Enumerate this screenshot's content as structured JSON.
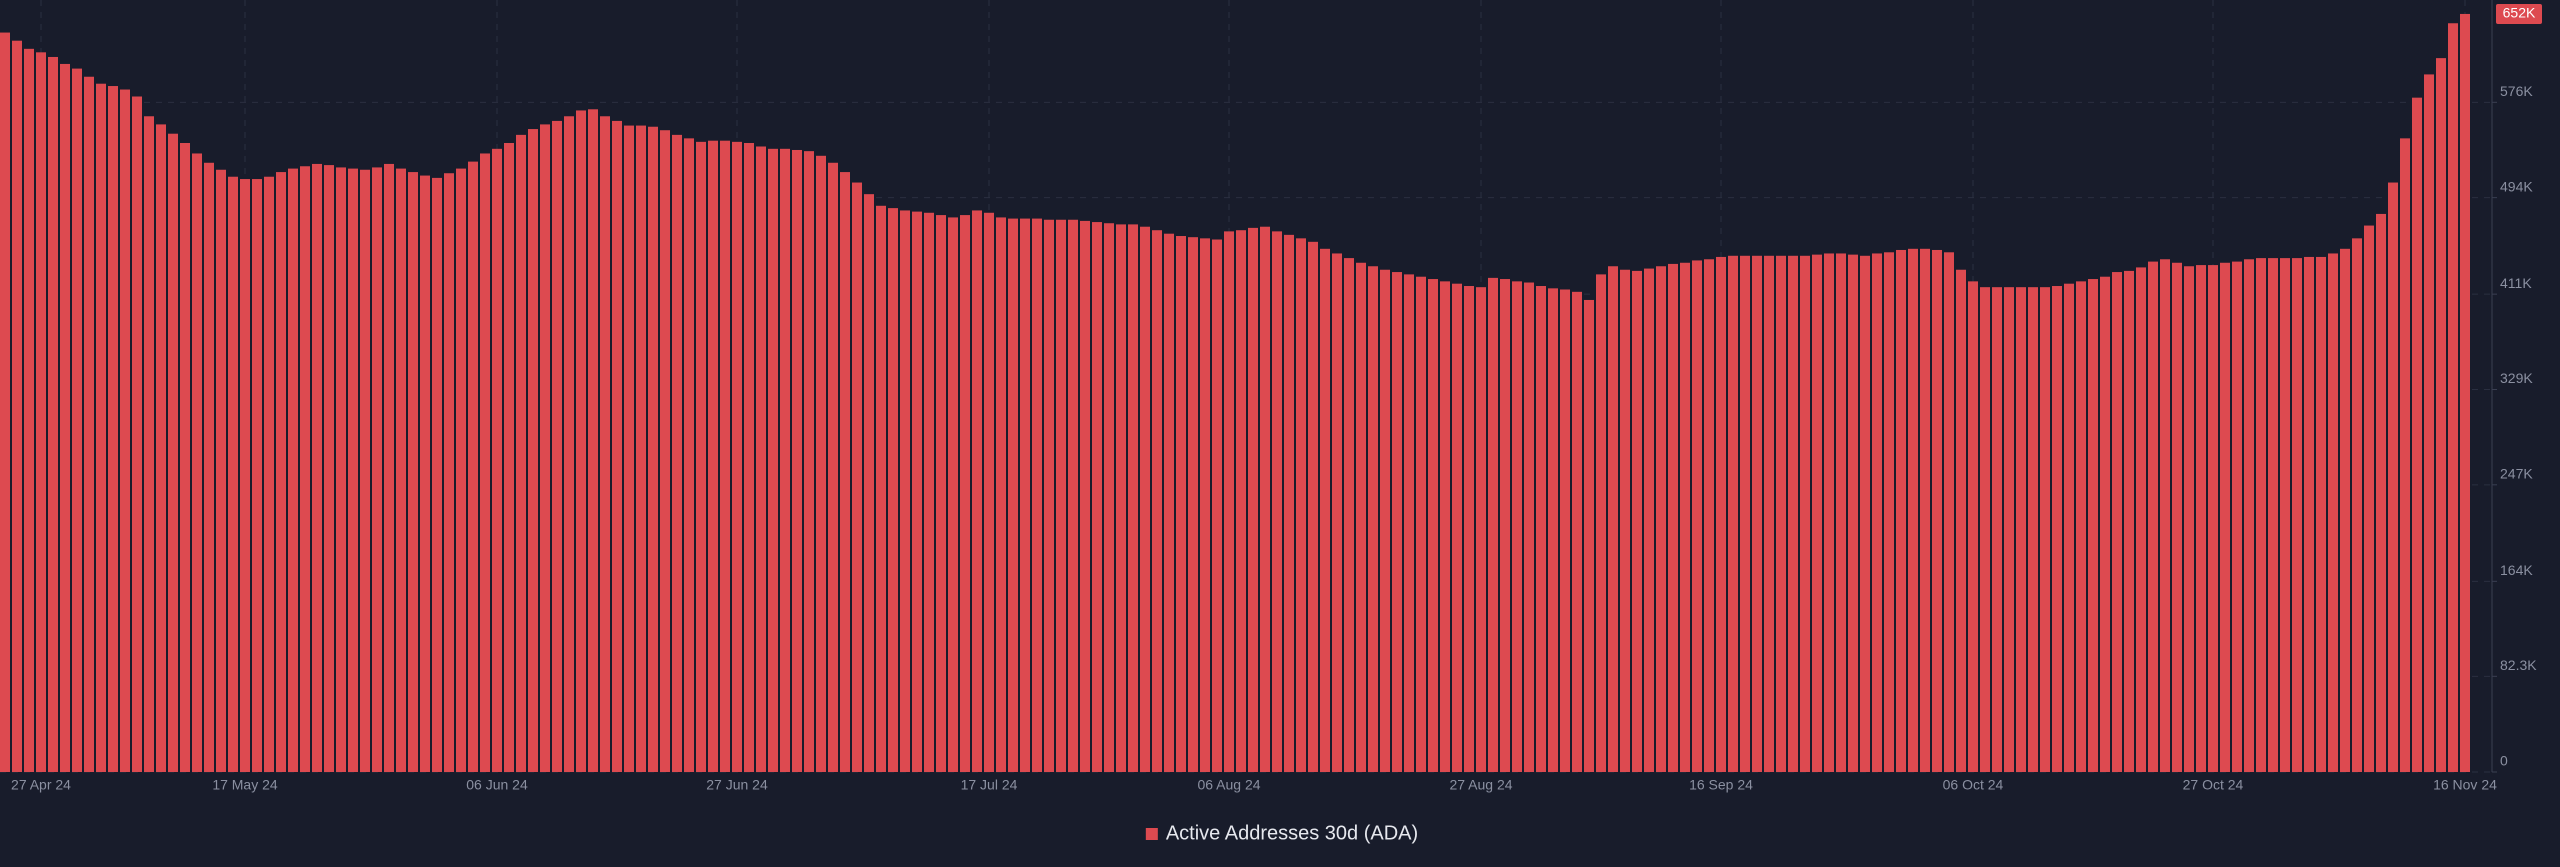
{
  "chart_data": {
    "type": "bar",
    "categories": [
      null,
      null,
      null,
      "27 Apr 24",
      null,
      null,
      null,
      null,
      null,
      null,
      null,
      null,
      null,
      null,
      null,
      null,
      null,
      null,
      null,
      null,
      "17 May 24",
      null,
      null,
      null,
      null,
      null,
      null,
      null,
      null,
      null,
      null,
      null,
      null,
      null,
      null,
      null,
      null,
      null,
      null,
      null,
      null,
      "06 Jun 24",
      null,
      null,
      null,
      null,
      null,
      null,
      null,
      null,
      null,
      null,
      null,
      null,
      null,
      null,
      null,
      null,
      null,
      null,
      null,
      "27 Jun 24",
      null,
      null,
      null,
      null,
      null,
      null,
      null,
      null,
      null,
      null,
      null,
      null,
      null,
      null,
      null,
      null,
      null,
      null,
      null,
      null,
      "17 Jul 24",
      null,
      null,
      null,
      null,
      null,
      null,
      null,
      null,
      null,
      null,
      null,
      null,
      null,
      null,
      null,
      null,
      null,
      null,
      null,
      "06 Aug 24",
      null,
      null,
      null,
      null,
      null,
      null,
      null,
      null,
      null,
      null,
      null,
      null,
      null,
      null,
      null,
      null,
      null,
      null,
      null,
      null,
      "27 Aug 24",
      null,
      null,
      null,
      null,
      null,
      null,
      null,
      null,
      null,
      null,
      null,
      null,
      null,
      null,
      null,
      null,
      null,
      null,
      null,
      "16 Sep 24",
      null,
      null,
      null,
      null,
      null,
      null,
      null,
      null,
      null,
      null,
      null,
      null,
      null,
      null,
      null,
      null,
      null,
      null,
      null,
      null,
      "06 Oct 24",
      null,
      null,
      null,
      null,
      null,
      null,
      null,
      null,
      null,
      null,
      null,
      null,
      null,
      null,
      null,
      null,
      null,
      null,
      null,
      "27 Oct 24",
      null,
      null,
      null,
      null,
      null,
      null,
      null,
      null,
      null,
      null,
      null,
      null,
      null,
      null,
      null,
      null,
      null,
      null,
      null,
      null,
      "16 Nov 24"
    ],
    "series": [
      {
        "name": "Active Addresses 30d (ADA)",
        "color": "#dd4a50",
        "values": [
          636000,
          629000,
          622000,
          619000,
          615000,
          609000,
          605000,
          598000,
          592000,
          590000,
          587000,
          581000,
          564000,
          557000,
          549000,
          541000,
          532000,
          524000,
          518000,
          512000,
          510000,
          510000,
          512000,
          516000,
          519000,
          521000,
          523000,
          522000,
          520000,
          519000,
          518000,
          520000,
          523000,
          519000,
          516000,
          513000,
          511000,
          515000,
          519000,
          525000,
          532000,
          536000,
          541000,
          548000,
          553000,
          557000,
          560000,
          564000,
          569000,
          570000,
          564000,
          560000,
          556000,
          556000,
          555000,
          552000,
          548000,
          545000,
          542000,
          543000,
          543000,
          542000,
          541000,
          538000,
          536000,
          536000,
          535000,
          534000,
          530000,
          524000,
          516000,
          507000,
          497000,
          487000,
          485000,
          483000,
          482000,
          481000,
          479000,
          477000,
          479000,
          483000,
          481000,
          477000,
          476000,
          476000,
          476000,
          475000,
          475000,
          475000,
          474000,
          473000,
          472000,
          471000,
          471000,
          469000,
          466000,
          463000,
          461000,
          460000,
          459000,
          458000,
          465000,
          466000,
          468000,
          469000,
          465000,
          462000,
          459000,
          456000,
          450000,
          446000,
          442000,
          438000,
          435000,
          432000,
          430000,
          428000,
          426000,
          424000,
          422000,
          420000,
          418000,
          417000,
          425000,
          424000,
          422000,
          421000,
          418000,
          416000,
          415000,
          413000,
          406000,
          428000,
          435000,
          432000,
          431000,
          433000,
          435000,
          437000,
          438000,
          440000,
          441000,
          443000,
          444000,
          444000,
          444000,
          444000,
          444000,
          444000,
          444000,
          445000,
          446000,
          446000,
          445000,
          444000,
          446000,
          447000,
          449000,
          450000,
          450000,
          449000,
          447000,
          432000,
          422000,
          417000,
          417000,
          417000,
          417000,
          417000,
          417000,
          418000,
          420000,
          422000,
          424000,
          426000,
          430000,
          431000,
          434000,
          439000,
          441000,
          438000,
          435000,
          436000,
          436000,
          438000,
          439000,
          441000,
          442000,
          442000,
          442000,
          442000,
          443000,
          443000,
          446000,
          450000,
          459000,
          470000,
          480000,
          507000,
          545000,
          580000,
          600000,
          614000,
          644000,
          652000
        ],
        "value_labels": [
          null,
          null,
          null,
          null,
          null,
          null,
          null,
          null,
          null,
          null,
          null,
          null,
          null,
          null,
          null,
          null,
          null,
          null,
          null,
          null,
          null,
          null,
          null,
          null,
          null,
          null,
          null,
          null,
          null,
          null,
          null,
          null,
          null,
          null,
          null,
          null,
          null,
          null,
          null,
          null,
          null,
          null,
          null,
          null,
          null,
          null,
          null,
          null,
          null,
          null,
          null,
          null,
          null,
          null,
          null,
          null,
          null,
          null,
          null,
          null,
          null,
          null,
          null,
          null,
          null,
          null,
          null,
          null,
          null,
          null,
          null,
          null,
          null,
          null,
          null,
          null,
          null,
          null,
          null,
          null,
          null,
          null,
          null,
          null,
          null,
          null,
          null,
          null,
          null,
          null,
          null,
          null,
          null,
          null,
          null,
          null,
          null,
          null,
          null,
          null,
          null,
          null,
          null,
          null,
          null,
          null,
          null,
          null,
          null,
          null,
          null,
          null,
          null,
          null,
          null,
          null,
          null,
          null,
          null,
          null,
          null,
          null,
          null,
          null,
          null,
          null,
          null,
          null,
          null,
          null,
          null,
          null,
          null,
          null,
          null,
          null,
          null,
          null,
          null,
          null,
          null,
          null,
          null,
          null,
          null,
          null,
          null,
          null,
          null,
          null,
          null,
          null,
          null,
          null,
          null,
          null,
          null,
          null,
          null,
          null,
          null,
          null,
          null,
          null,
          null,
          null,
          null,
          null,
          null,
          null,
          null,
          null,
          null,
          null,
          null,
          null,
          null,
          null,
          null,
          null,
          null,
          null,
          null,
          null,
          null,
          null,
          null,
          null,
          null,
          null,
          null,
          null,
          null,
          null,
          null,
          null,
          null,
          null,
          null,
          null,
          null,
          null,
          null,
          null,
          null,
          "652K"
        ]
      }
    ],
    "ylim": [
      0,
      664000
    ],
    "yticks": [
      0,
      {
        "value": 82300,
        "label": "82.3K"
      },
      {
        "value": 164000,
        "label": "164K"
      },
      {
        "value": 247000,
        "label": "247K"
      },
      {
        "value": 329000,
        "label": "329K"
      },
      {
        "value": 411000,
        "label": "411K"
      },
      {
        "value": 494000,
        "label": "494K"
      },
      {
        "value": 576000,
        "label": "576K"
      }
    ],
    "grid": true
  }
}
